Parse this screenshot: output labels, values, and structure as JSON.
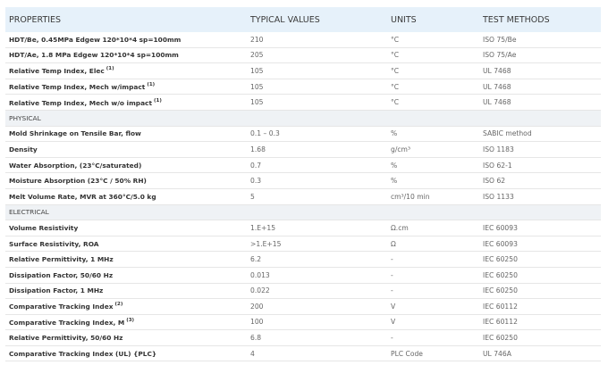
{
  "table": {
    "header": [
      "PROPERTIES",
      "TYPICAL VALUES",
      "UNITS",
      "TEST METHODS"
    ],
    "rows": [
      {
        "cells": [
          "HDT/Be, 0.45MPa Edgew 120*10*4 sp=100mm",
          "210",
          "°C",
          "ISO 75/Be"
        ]
      },
      {
        "cells": [
          "HDT/Ae, 1.8 MPa Edgew 120*10*4 sp=100mm",
          "205",
          "°C",
          "ISO 75/Ae"
        ]
      },
      {
        "cells": [
          "Relative Temp Index, Elec",
          "105",
          "°C",
          "UL 7468"
        ],
        "note": "(1)"
      },
      {
        "cells": [
          "Relative Temp Index, Mech w/impact",
          "105",
          "°C",
          "UL 7468"
        ],
        "note": "(1)"
      },
      {
        "cells": [
          "Relative Temp Index, Mech w/o impact",
          "105",
          "°C",
          "UL 7468"
        ],
        "note": "(1)"
      },
      {
        "section": "PHYSICAL"
      },
      {
        "cells": [
          "Mold Shrinkage on Tensile Bar, flow",
          "0.1 – 0.3",
          "%",
          "SABIC method"
        ]
      },
      {
        "cells": [
          "Density",
          "1.68",
          "g/cm³",
          "ISO 1183"
        ]
      },
      {
        "cells": [
          "Water Absorption, (23°C/saturated)",
          "0.7",
          "%",
          "ISO 62-1"
        ]
      },
      {
        "cells": [
          "Moisture Absorption (23°C / 50% RH)",
          "0.3",
          "%",
          "ISO 62"
        ]
      },
      {
        "cells": [
          "Melt Volume Rate, MVR at 360°C/5.0 kg",
          "5",
          "cm³/10 min",
          "ISO 1133"
        ]
      },
      {
        "section": "ELECTRICAL"
      },
      {
        "cells": [
          "Volume Resistivity",
          "1.E+15",
          "Ω.cm",
          "IEC 60093"
        ]
      },
      {
        "cells": [
          "Surface Resistivity, ROA",
          ">1.E+15",
          "Ω",
          "IEC 60093"
        ]
      },
      {
        "cells": [
          "Relative Permittivity, 1 MHz",
          "6.2",
          "-",
          "IEC 60250"
        ]
      },
      {
        "cells": [
          "Dissipation Factor, 50/60 Hz",
          "0.013",
          "-",
          "IEC 60250"
        ]
      },
      {
        "cells": [
          "Dissipation Factor, 1 MHz",
          "0.022",
          "-",
          "IEC 60250"
        ]
      },
      {
        "cells": [
          "Comparative Tracking Index",
          "200",
          "V",
          "IEC 60112"
        ],
        "note": "(2)"
      },
      {
        "cells": [
          "Comparative Tracking Index, M",
          "100",
          "V",
          "IEC 60112"
        ],
        "note": "(3)"
      },
      {
        "cells": [
          "Relative Permittivity, 50/60 Hz",
          "6.8",
          "-",
          "IEC 60250"
        ]
      },
      {
        "cells": [
          "Comparative Tracking Index (UL) {PLC}",
          "4",
          "PLC Code",
          "UL 746A"
        ]
      }
    ]
  }
}
